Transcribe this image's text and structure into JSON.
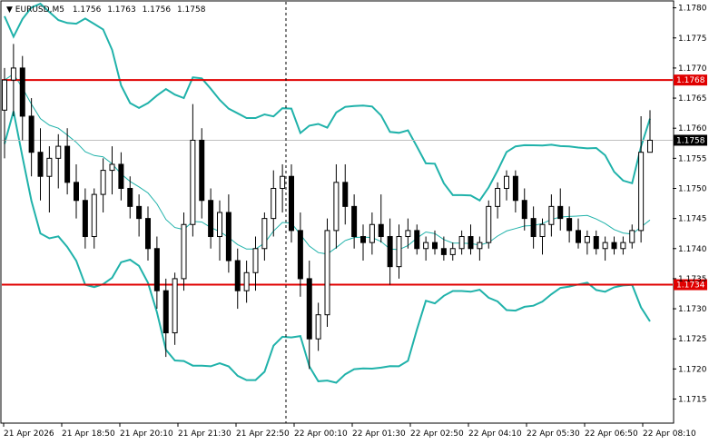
{
  "chart_data": {
    "type": "candlestick",
    "symbol": "EURUSD",
    "timeframe": "M5",
    "header_ohlc": [
      "1.1756",
      "1.1763",
      "1.1756",
      "1.1758"
    ],
    "ylim": [
      1.1711,
      1.1781
    ],
    "y_ticks": [
      "1.1715",
      "1.1720",
      "1.1725",
      "1.1730",
      "1.1735",
      "1.1740",
      "1.1745",
      "1.1750",
      "1.1755",
      "1.1760",
      "1.1765",
      "1.1770",
      "1.1775",
      "1.1780"
    ],
    "x_ticks": [
      "21 Apr 2026",
      "21 Apr 18:50",
      "21 Apr 20:10",
      "21 Apr 21:30",
      "21 Apr 22:50",
      "22 Apr 00:10",
      "22 Apr 01:30",
      "22 Apr 02:50",
      "22 Apr 04:10",
      "22 Apr 05:30",
      "22 Apr 06:50",
      "22 Apr 08:10"
    ],
    "price_levels": [
      {
        "label": "1.1768",
        "value": 1.1768,
        "color": "#e00000"
      },
      {
        "label": "1.1734",
        "value": 1.1734,
        "color": "#e00000"
      }
    ],
    "current_price": {
      "label": "1.1758",
      "value": 1.1758
    },
    "colors": {
      "bull": "#ffffff",
      "bear": "#000000",
      "band": "#20b2aa",
      "middle": "#20b2aa",
      "level": "#e00000"
    },
    "candles": [
      [
        1.1763,
        1.177,
        1.1755,
        1.1768
      ],
      [
        1.1768,
        1.1774,
        1.1762,
        1.177
      ],
      [
        1.177,
        1.1772,
        1.1758,
        1.1762
      ],
      [
        1.1762,
        1.1765,
        1.1752,
        1.1756
      ],
      [
        1.1756,
        1.176,
        1.1748,
        1.1752
      ],
      [
        1.1752,
        1.1757,
        1.1746,
        1.1755
      ],
      [
        1.1755,
        1.1759,
        1.175,
        1.1757
      ],
      [
        1.1757,
        1.176,
        1.1749,
        1.1751
      ],
      [
        1.1751,
        1.1754,
        1.1745,
        1.1748
      ],
      [
        1.1748,
        1.175,
        1.174,
        1.1742
      ],
      [
        1.1742,
        1.175,
        1.174,
        1.1749
      ],
      [
        1.1749,
        1.1755,
        1.1746,
        1.1753
      ],
      [
        1.1753,
        1.1757,
        1.1749,
        1.1754
      ],
      [
        1.1754,
        1.1756,
        1.1748,
        1.175
      ],
      [
        1.175,
        1.1752,
        1.1745,
        1.1747
      ],
      [
        1.1747,
        1.1749,
        1.1742,
        1.1745
      ],
      [
        1.1745,
        1.1747,
        1.1738,
        1.174
      ],
      [
        1.174,
        1.1742,
        1.173,
        1.1733
      ],
      [
        1.1733,
        1.1735,
        1.1722,
        1.1726
      ],
      [
        1.1726,
        1.1736,
        1.1724,
        1.1735
      ],
      [
        1.1735,
        1.1746,
        1.1733,
        1.1744
      ],
      [
        1.1744,
        1.1764,
        1.1742,
        1.1758
      ],
      [
        1.1758,
        1.176,
        1.1745,
        1.1748
      ],
      [
        1.1748,
        1.175,
        1.174,
        1.1742
      ],
      [
        1.1742,
        1.1748,
        1.1738,
        1.1746
      ],
      [
        1.1746,
        1.1749,
        1.1736,
        1.1738
      ],
      [
        1.1738,
        1.174,
        1.173,
        1.1733
      ],
      [
        1.1733,
        1.1738,
        1.1731,
        1.1736
      ],
      [
        1.1736,
        1.1742,
        1.1733,
        1.174
      ],
      [
        1.174,
        1.1746,
        1.1738,
        1.1745
      ],
      [
        1.1745,
        1.1753,
        1.1742,
        1.175
      ],
      [
        1.175,
        1.1754,
        1.1746,
        1.1752
      ],
      [
        1.1752,
        1.1754,
        1.1741,
        1.1743
      ],
      [
        1.1743,
        1.1746,
        1.1732,
        1.1735
      ],
      [
        1.1735,
        1.1738,
        1.172,
        1.1725
      ],
      [
        1.1725,
        1.1731,
        1.1723,
        1.1729
      ],
      [
        1.1729,
        1.1745,
        1.1727,
        1.1743
      ],
      [
        1.1743,
        1.1754,
        1.174,
        1.1751
      ],
      [
        1.1751,
        1.1754,
        1.1744,
        1.1747
      ],
      [
        1.1747,
        1.1749,
        1.174,
        1.1742
      ],
      [
        1.1742,
        1.1744,
        1.1738,
        1.1741
      ],
      [
        1.1741,
        1.1746,
        1.1739,
        1.1744
      ],
      [
        1.1744,
        1.1749,
        1.1741,
        1.1742
      ],
      [
        1.1742,
        1.1745,
        1.1734,
        1.1737
      ],
      [
        1.1737,
        1.1744,
        1.1735,
        1.1742
      ],
      [
        1.1742,
        1.1745,
        1.174,
        1.1743
      ],
      [
        1.1743,
        1.1744,
        1.1739,
        1.174
      ],
      [
        1.174,
        1.1742,
        1.1738,
        1.1741
      ],
      [
        1.1741,
        1.1743,
        1.1739,
        1.174
      ],
      [
        1.174,
        1.1742,
        1.1738,
        1.1739
      ],
      [
        1.1739,
        1.1741,
        1.1738,
        1.174
      ],
      [
        1.174,
        1.1743,
        1.1739,
        1.1742
      ],
      [
        1.1742,
        1.1744,
        1.1739,
        1.174
      ],
      [
        1.174,
        1.1742,
        1.1738,
        1.1741
      ],
      [
        1.1741,
        1.1748,
        1.174,
        1.1747
      ],
      [
        1.1747,
        1.1751,
        1.1745,
        1.175
      ],
      [
        1.175,
        1.1753,
        1.1748,
        1.1752
      ],
      [
        1.1752,
        1.1753,
        1.1746,
        1.1748
      ],
      [
        1.1748,
        1.175,
        1.1743,
        1.1745
      ],
      [
        1.1745,
        1.1747,
        1.174,
        1.1742
      ],
      [
        1.1742,
        1.1745,
        1.1739,
        1.1744
      ],
      [
        1.1744,
        1.1749,
        1.1742,
        1.1747
      ],
      [
        1.1747,
        1.175,
        1.1743,
        1.1745
      ],
      [
        1.1745,
        1.1747,
        1.1741,
        1.1743
      ],
      [
        1.1743,
        1.1745,
        1.174,
        1.1741
      ],
      [
        1.1741,
        1.1743,
        1.1739,
        1.1742
      ],
      [
        1.1742,
        1.1743,
        1.1739,
        1.174
      ],
      [
        1.174,
        1.1742,
        1.1738,
        1.1741
      ],
      [
        1.1741,
        1.1742,
        1.1739,
        1.174
      ],
      [
        1.174,
        1.1742,
        1.1739,
        1.1741
      ],
      [
        1.1741,
        1.1744,
        1.174,
        1.1743
      ],
      [
        1.1743,
        1.1762,
        1.1741,
        1.1756
      ],
      [
        1.1756,
        1.1763,
        1.1756,
        1.1758
      ]
    ]
  }
}
